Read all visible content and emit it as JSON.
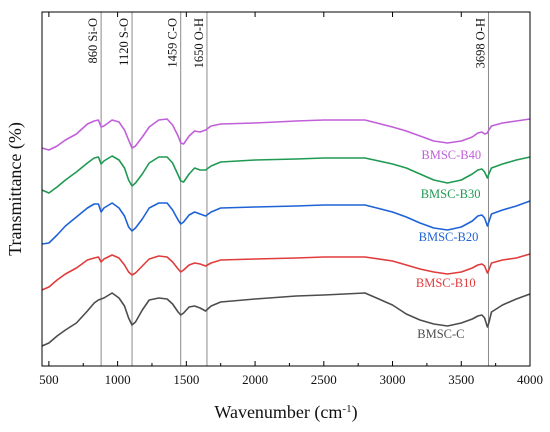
{
  "chart_data": {
    "type": "line",
    "title": "",
    "xlabel": "Wavenumber (cm",
    "xlabel_sup": "-1",
    "xlabel_suffix": ")",
    "ylabel": "Transmittance (%)",
    "xlim": [
      450,
      4000
    ],
    "x_ticks": [
      500,
      1000,
      1500,
      2000,
      2500,
      3000,
      3500,
      4000
    ],
    "y_ticks_shown": false,
    "grid": false,
    "annotations": [
      {
        "x": 880,
        "label": "860 Si-O"
      },
      {
        "x": 1105,
        "label": "1120 S-O"
      },
      {
        "x": 1459,
        "label": "1459 C-O"
      },
      {
        "x": 1650,
        "label": "1650 O-H"
      },
      {
        "x": 3698,
        "label": "3698 O-H"
      }
    ],
    "series": [
      {
        "name": "BMSC-B40",
        "color": "#c15fd9",
        "label_x": 3210,
        "points": [
          [
            450,
            148
          ],
          [
            500,
            150
          ],
          [
            560,
            146
          ],
          [
            620,
            140
          ],
          [
            700,
            134
          ],
          [
            780,
            124
          ],
          [
            830,
            121
          ],
          [
            860,
            120
          ],
          [
            880,
            127
          ],
          [
            900,
            126
          ],
          [
            960,
            120
          ],
          [
            1010,
            122
          ],
          [
            1050,
            130
          ],
          [
            1080,
            140
          ],
          [
            1105,
            148
          ],
          [
            1130,
            146
          ],
          [
            1180,
            137
          ],
          [
            1230,
            127
          ],
          [
            1300,
            120
          ],
          [
            1360,
            119
          ],
          [
            1400,
            125
          ],
          [
            1440,
            136
          ],
          [
            1460,
            143
          ],
          [
            1480,
            144
          ],
          [
            1520,
            136
          ],
          [
            1560,
            131
          ],
          [
            1600,
            132
          ],
          [
            1640,
            130
          ],
          [
            1680,
            126
          ],
          [
            1750,
            124
          ],
          [
            2000,
            123
          ],
          [
            2300,
            121
          ],
          [
            2500,
            120
          ],
          [
            2800,
            120
          ],
          [
            3000,
            127
          ],
          [
            3100,
            131
          ],
          [
            3200,
            136
          ],
          [
            3300,
            141
          ],
          [
            3400,
            143
          ],
          [
            3500,
            141
          ],
          [
            3580,
            137
          ],
          [
            3620,
            133
          ],
          [
            3650,
            132
          ],
          [
            3670,
            134
          ],
          [
            3690,
            133
          ],
          [
            3700,
            130
          ],
          [
            3720,
            126
          ],
          [
            3800,
            123
          ],
          [
            3900,
            121
          ],
          [
            4000,
            119
          ]
        ]
      },
      {
        "name": "BMSC-B30",
        "color": "#1f9a52",
        "label_x": 3205,
        "points": [
          [
            450,
            190
          ],
          [
            500,
            193
          ],
          [
            560,
            187
          ],
          [
            620,
            180
          ],
          [
            700,
            172
          ],
          [
            780,
            163
          ],
          [
            830,
            158
          ],
          [
            860,
            157
          ],
          [
            880,
            164
          ],
          [
            900,
            161
          ],
          [
            960,
            156
          ],
          [
            1010,
            160
          ],
          [
            1050,
            168
          ],
          [
            1080,
            180
          ],
          [
            1105,
            186
          ],
          [
            1130,
            183
          ],
          [
            1180,
            174
          ],
          [
            1230,
            163
          ],
          [
            1300,
            157
          ],
          [
            1360,
            157
          ],
          [
            1400,
            163
          ],
          [
            1440,
            175
          ],
          [
            1460,
            181
          ],
          [
            1480,
            182
          ],
          [
            1520,
            174
          ],
          [
            1560,
            168
          ],
          [
            1600,
            170
          ],
          [
            1640,
            170
          ],
          [
            1680,
            166
          ],
          [
            1750,
            162
          ],
          [
            2000,
            160
          ],
          [
            2300,
            159
          ],
          [
            2500,
            158
          ],
          [
            2800,
            158
          ],
          [
            3000,
            164
          ],
          [
            3100,
            168
          ],
          [
            3200,
            174
          ],
          [
            3300,
            180
          ],
          [
            3400,
            183
          ],
          [
            3500,
            180
          ],
          [
            3580,
            174
          ],
          [
            3620,
            170
          ],
          [
            3650,
            169
          ],
          [
            3670,
            172
          ],
          [
            3690,
            178
          ],
          [
            3700,
            174
          ],
          [
            3720,
            168
          ],
          [
            3800,
            164
          ],
          [
            3900,
            160
          ],
          [
            4000,
            157
          ]
        ]
      },
      {
        "name": "BMSC-B20",
        "color": "#1e63d6",
        "label_x": 3190,
        "points": [
          [
            450,
            244
          ],
          [
            500,
            243
          ],
          [
            560,
            235
          ],
          [
            620,
            226
          ],
          [
            700,
            217
          ],
          [
            780,
            208
          ],
          [
            830,
            204
          ],
          [
            860,
            204
          ],
          [
            880,
            212
          ],
          [
            900,
            208
          ],
          [
            960,
            203
          ],
          [
            1010,
            208
          ],
          [
            1050,
            216
          ],
          [
            1080,
            227
          ],
          [
            1105,
            231
          ],
          [
            1130,
            228
          ],
          [
            1180,
            219
          ],
          [
            1230,
            208
          ],
          [
            1300,
            203
          ],
          [
            1360,
            203
          ],
          [
            1400,
            210
          ],
          [
            1440,
            220
          ],
          [
            1460,
            224
          ],
          [
            1480,
            222
          ],
          [
            1520,
            215
          ],
          [
            1560,
            212
          ],
          [
            1600,
            214
          ],
          [
            1640,
            216
          ],
          [
            1680,
            212
          ],
          [
            1750,
            208
          ],
          [
            2000,
            207
          ],
          [
            2300,
            206
          ],
          [
            2500,
            205
          ],
          [
            2800,
            205
          ],
          [
            3000,
            212
          ],
          [
            3100,
            217
          ],
          [
            3200,
            223
          ],
          [
            3300,
            228
          ],
          [
            3400,
            230
          ],
          [
            3500,
            227
          ],
          [
            3580,
            221
          ],
          [
            3620,
            216
          ],
          [
            3650,
            215
          ],
          [
            3670,
            218
          ],
          [
            3690,
            226
          ],
          [
            3700,
            222
          ],
          [
            3720,
            214
          ],
          [
            3800,
            210
          ],
          [
            3900,
            206
          ],
          [
            4000,
            201
          ]
        ]
      },
      {
        "name": "BMSC-B10",
        "color": "#e03c3c",
        "label_x": 3170,
        "points": [
          [
            450,
            290
          ],
          [
            500,
            287
          ],
          [
            560,
            280
          ],
          [
            620,
            274
          ],
          [
            700,
            268
          ],
          [
            780,
            260
          ],
          [
            830,
            258
          ],
          [
            860,
            257
          ],
          [
            880,
            262
          ],
          [
            900,
            259
          ],
          [
            960,
            255
          ],
          [
            1010,
            258
          ],
          [
            1050,
            265
          ],
          [
            1080,
            272
          ],
          [
            1105,
            275
          ],
          [
            1130,
            273
          ],
          [
            1180,
            266
          ],
          [
            1230,
            259
          ],
          [
            1300,
            256
          ],
          [
            1360,
            257
          ],
          [
            1400,
            262
          ],
          [
            1440,
            269
          ],
          [
            1460,
            272
          ],
          [
            1480,
            270
          ],
          [
            1520,
            265
          ],
          [
            1560,
            263
          ],
          [
            1600,
            264
          ],
          [
            1640,
            266
          ],
          [
            1680,
            263
          ],
          [
            1750,
            260
          ],
          [
            2000,
            259
          ],
          [
            2300,
            258
          ],
          [
            2500,
            257
          ],
          [
            2800,
            257
          ],
          [
            3000,
            261
          ],
          [
            3100,
            265
          ],
          [
            3200,
            269
          ],
          [
            3300,
            272
          ],
          [
            3400,
            274
          ],
          [
            3500,
            272
          ],
          [
            3580,
            268
          ],
          [
            3620,
            265
          ],
          [
            3650,
            264
          ],
          [
            3670,
            266
          ],
          [
            3690,
            273
          ],
          [
            3700,
            270
          ],
          [
            3720,
            263
          ],
          [
            3800,
            260
          ],
          [
            3900,
            258
          ],
          [
            4000,
            254
          ]
        ]
      },
      {
        "name": "BMSC-C",
        "color": "#4d4d4d",
        "label_x": 3180,
        "points": [
          [
            450,
            346
          ],
          [
            500,
            343
          ],
          [
            560,
            336
          ],
          [
            620,
            330
          ],
          [
            700,
            323
          ],
          [
            780,
            311
          ],
          [
            830,
            303
          ],
          [
            860,
            300
          ],
          [
            880,
            299
          ],
          [
            900,
            298
          ],
          [
            960,
            293
          ],
          [
            1010,
            298
          ],
          [
            1050,
            306
          ],
          [
            1080,
            318
          ],
          [
            1105,
            325
          ],
          [
            1130,
            322
          ],
          [
            1180,
            310
          ],
          [
            1230,
            300
          ],
          [
            1300,
            298
          ],
          [
            1360,
            299
          ],
          [
            1400,
            304
          ],
          [
            1440,
            312
          ],
          [
            1460,
            315
          ],
          [
            1480,
            313
          ],
          [
            1520,
            307
          ],
          [
            1560,
            306
          ],
          [
            1600,
            308
          ],
          [
            1640,
            311
          ],
          [
            1680,
            306
          ],
          [
            1750,
            302
          ],
          [
            2000,
            299
          ],
          [
            2300,
            296
          ],
          [
            2500,
            295
          ],
          [
            2800,
            293
          ],
          [
            3000,
            305
          ],
          [
            3100,
            314
          ],
          [
            3200,
            320
          ],
          [
            3300,
            324
          ],
          [
            3400,
            326
          ],
          [
            3500,
            323
          ],
          [
            3580,
            319
          ],
          [
            3620,
            316
          ],
          [
            3650,
            315
          ],
          [
            3670,
            318
          ],
          [
            3690,
            327
          ],
          [
            3700,
            323
          ],
          [
            3720,
            312
          ],
          [
            3800,
            305
          ],
          [
            3900,
            299
          ],
          [
            4000,
            294
          ]
        ]
      }
    ]
  }
}
